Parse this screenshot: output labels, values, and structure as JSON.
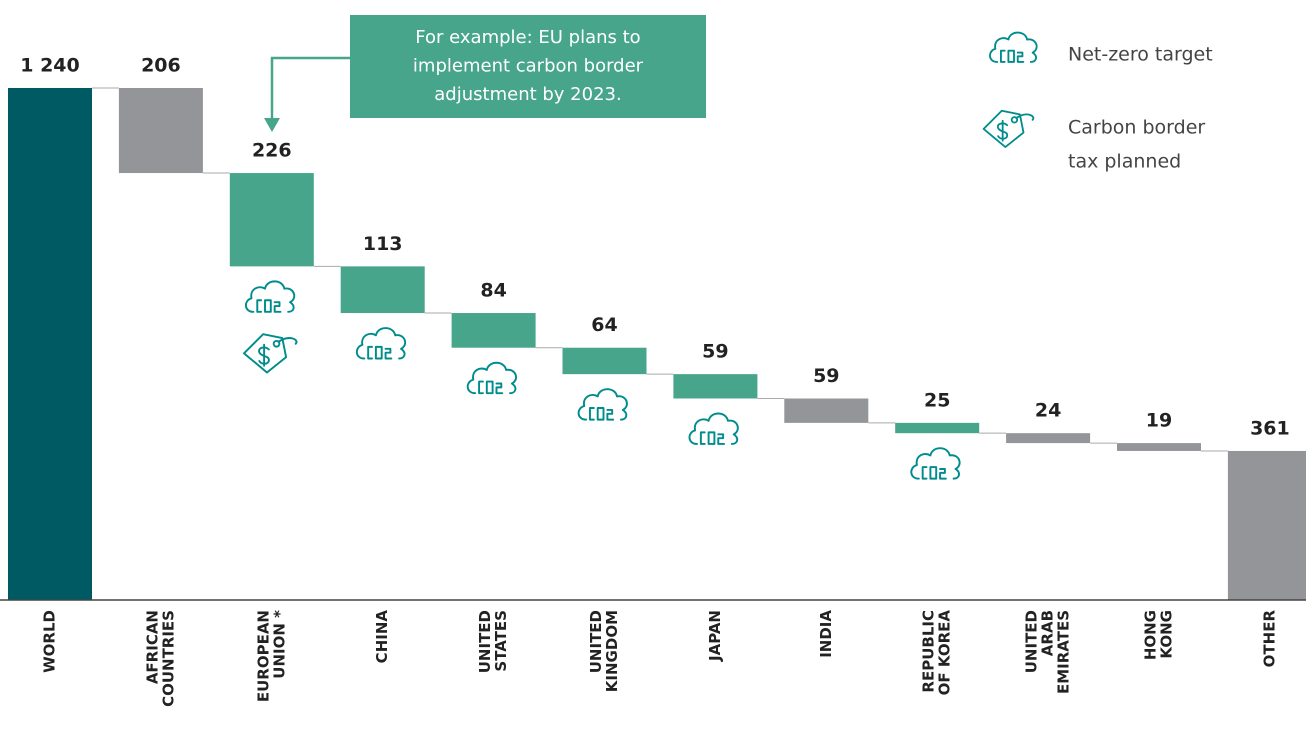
{
  "chart_data": {
    "type": "waterfall",
    "categories": [
      [
        "WORLD"
      ],
      [
        "AFRICAN",
        "COUNTRIES"
      ],
      [
        "EUROPEAN",
        "UNION *"
      ],
      [
        "CHINA"
      ],
      [
        "UNITED",
        "STATES"
      ],
      [
        "UNITED",
        "KINGDOM"
      ],
      [
        "JAPAN"
      ],
      [
        "INDIA"
      ],
      [
        "REPUBLIC",
        "OF KOREA"
      ],
      [
        "UNITED",
        "ARAB",
        "EMIRATES"
      ],
      [
        "HONG",
        "KONG"
      ],
      [
        "OTHER"
      ]
    ],
    "values": [
      1240,
      206,
      226,
      113,
      84,
      64,
      59,
      59,
      25,
      24,
      19,
      361
    ],
    "value_labels": [
      "1 240",
      "206",
      "226",
      "113",
      "84",
      "64",
      "59",
      "59",
      "25",
      "24",
      "19",
      "361"
    ],
    "kinds": [
      "total",
      "decrease",
      "decrease",
      "decrease",
      "decrease",
      "decrease",
      "decrease",
      "decrease",
      "decrease",
      "decrease",
      "decrease",
      "total"
    ],
    "colors": [
      "#005a64",
      "#939598",
      "#47a58c",
      "#47a58c",
      "#47a58c",
      "#47a58c",
      "#47a58c",
      "#939598",
      "#47a58c",
      "#939598",
      "#939598",
      "#939598"
    ],
    "net_zero_target": [
      false,
      false,
      true,
      true,
      true,
      true,
      true,
      false,
      true,
      false,
      false,
      false
    ],
    "carbon_border_tax": [
      false,
      false,
      true,
      false,
      false,
      false,
      false,
      false,
      false,
      false,
      false,
      false
    ],
    "ylim": [
      0,
      1240
    ],
    "annotation": [
      "For example: EU plans to",
      "implement carbon border",
      "adjustment by 2023."
    ],
    "legend": [
      {
        "name": [
          "Net-zero target"
        ]
      },
      {
        "name": [
          "Carbon border",
          "tax planned"
        ]
      }
    ]
  }
}
